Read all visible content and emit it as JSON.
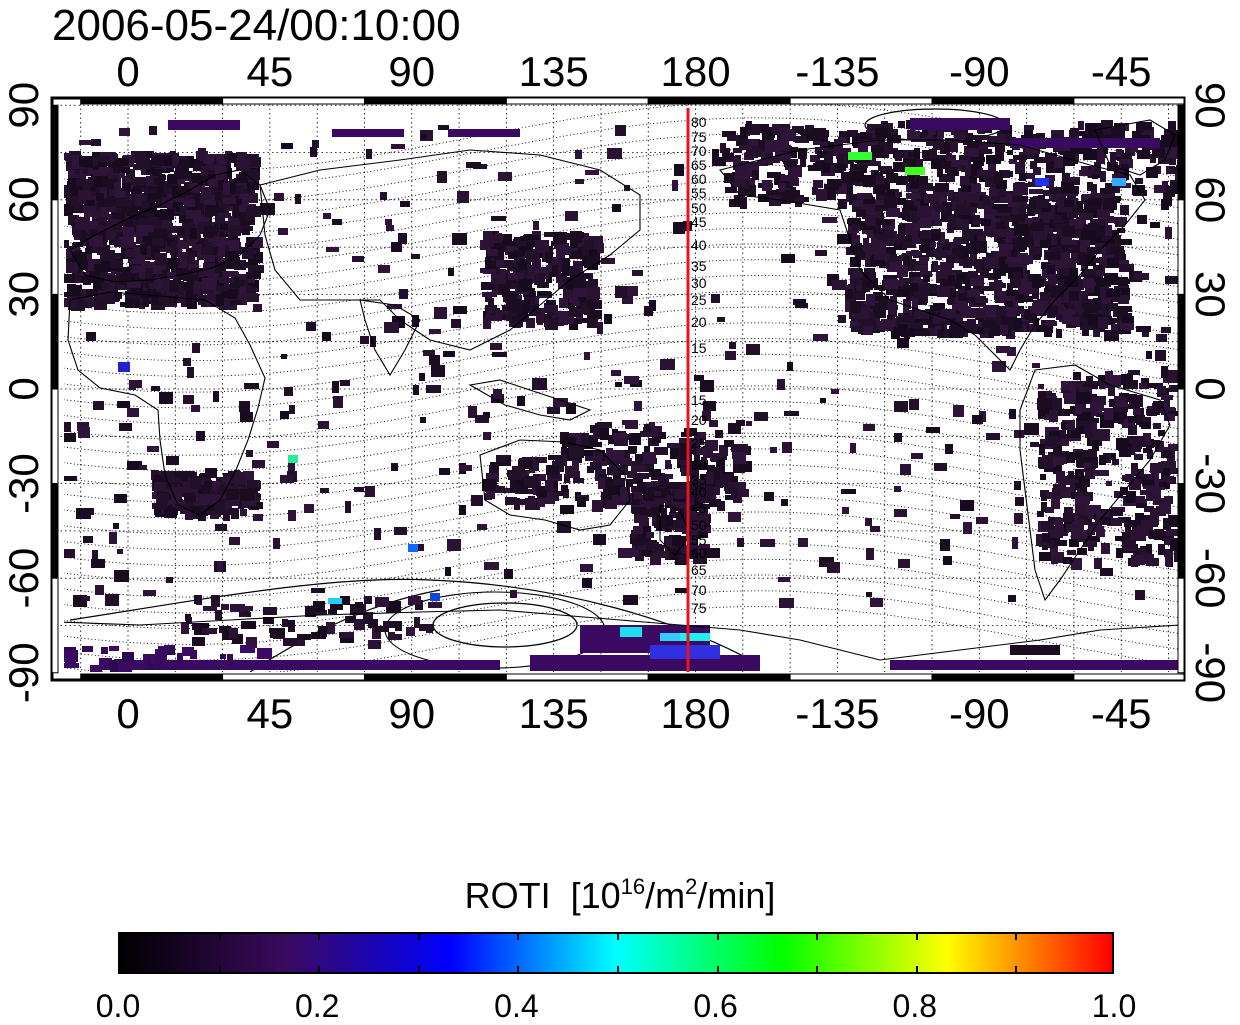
{
  "map": {
    "timestamp": "2006-05-24/00:10:00",
    "longitude_tick_labels": [
      "0",
      "45",
      "90",
      "135",
      "180",
      "-135",
      "-90",
      "-45"
    ],
    "latitude_tick_labels": [
      "90",
      "60",
      "30",
      "0",
      "-30",
      "-60",
      "-90"
    ],
    "mlat_labels_north": [
      "80",
      "75",
      "70",
      "65",
      "60",
      "55",
      "50",
      "45",
      "40",
      "35",
      "30",
      "25",
      "20",
      "15"
    ],
    "mlat_labels_south": [
      "15",
      "20",
      "25",
      "30",
      "35",
      "40",
      "45",
      "50",
      "55",
      "60",
      "65",
      "70",
      "75"
    ],
    "terminator_color": "#e8141c",
    "terminator_longitude": 179
  },
  "colorbar": {
    "title": "ROTI",
    "unit_prefix": "[10",
    "unit_exp": "16",
    "unit_mid": "/m",
    "unit_exp2": "2",
    "unit_suffix": "/min]",
    "tick_labels": [
      "0.0",
      "0.2",
      "0.4",
      "0.6",
      "0.8",
      "1.0"
    ],
    "gradient": [
      "#000000",
      "#3a0a5e",
      "#0000ff",
      "#00ffff",
      "#00ff00",
      "#ffff00",
      "#ff0000"
    ]
  }
}
